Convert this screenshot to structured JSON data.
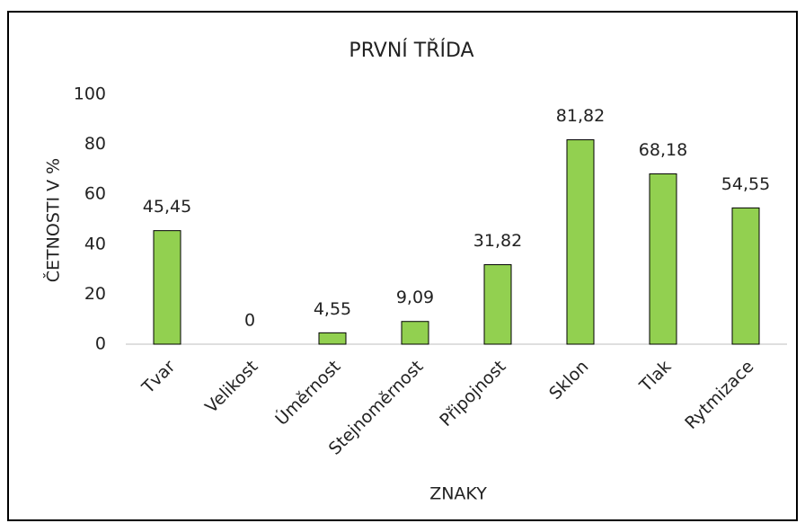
{
  "chart_data": {
    "type": "bar",
    "title": "PRVNÍ TŘÍDA",
    "x_label": "ZNAKY",
    "y_label": "ČETNOSTI V %",
    "categories": [
      "Tvar",
      "Velikost",
      "Úměrnost",
      "Stejnoměrnost",
      "Připojnost",
      "Sklon",
      "Tlak",
      "Rytmizace"
    ],
    "values": [
      45.45,
      0,
      4.55,
      9.09,
      31.82,
      81.82,
      68.18,
      54.55
    ],
    "value_labels": [
      "45,45",
      "0",
      "4,55",
      "9,09",
      "31,82",
      "81,82",
      "68,18",
      "54,55"
    ],
    "color": "#92d050",
    "ylim": [
      0,
      100
    ],
    "yticks": [
      0,
      20,
      40,
      60,
      80,
      100
    ],
    "grid": false
  }
}
